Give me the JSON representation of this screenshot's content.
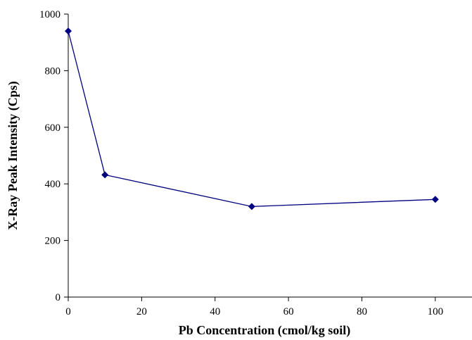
{
  "chart_data": {
    "type": "line",
    "title": "",
    "xlabel": "Pb Concentration (cmol/kg soil)",
    "ylabel": "X-Ray Peak Intensity (Cps)",
    "xlim": [
      0,
      110
    ],
    "ylim": [
      0,
      1000
    ],
    "x_ticks": [
      "0",
      "20",
      "40",
      "60",
      "80",
      "100"
    ],
    "y_ticks": [
      "0",
      "200",
      "400",
      "600",
      "800",
      "1000"
    ],
    "grid": false,
    "legend": "none",
    "series": [
      {
        "x": [
          0,
          10,
          50,
          100
        ],
        "y": [
          940,
          432,
          320,
          345
        ],
        "color": "#000080",
        "marker": "diamond"
      }
    ]
  }
}
